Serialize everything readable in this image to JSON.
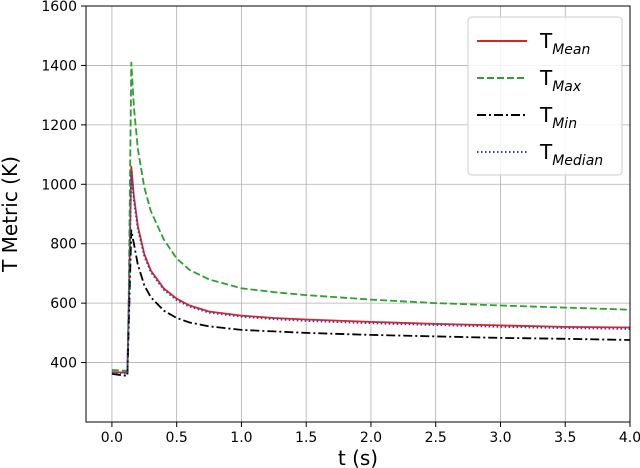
{
  "chart_data": {
    "type": "line",
    "xlabel": "t (s)",
    "ylabel": "T Metric (K)",
    "xlim": [
      -0.2,
      4.0
    ],
    "ylim": [
      200,
      1600
    ],
    "xticks": [
      0.0,
      0.5,
      1.0,
      1.5,
      2.0,
      2.5,
      3.0,
      3.5,
      4.0
    ],
    "xtick_labels": [
      "0.0",
      "0.5",
      "1.0",
      "1.5",
      "2.0",
      "2.5",
      "3.0",
      "3.5",
      "4.0"
    ],
    "yticks": [
      400,
      600,
      800,
      1000,
      1200,
      1400,
      1600
    ],
    "ytick_labels": [
      "400",
      "600",
      "800",
      "1000",
      "1200",
      "1400",
      "1600"
    ],
    "grid": true,
    "legend_position": "upper right",
    "series": [
      {
        "name": "Mean",
        "label_main": "T",
        "label_sub": "Mean",
        "color": "#d62728",
        "style": "solid",
        "x": [
          0.0,
          0.12,
          0.13,
          0.15,
          0.17,
          0.2,
          0.25,
          0.3,
          0.4,
          0.5,
          0.6,
          0.75,
          1.0,
          1.25,
          1.5,
          2.0,
          2.5,
          3.0,
          3.5,
          4.0
        ],
        "y": [
          368,
          366,
          580,
          1060,
          960,
          860,
          765,
          710,
          650,
          615,
          592,
          572,
          558,
          550,
          545,
          537,
          530,
          525,
          520,
          518
        ]
      },
      {
        "name": "Max",
        "label_main": "T",
        "label_sub": "Max",
        "color": "#2ca02c",
        "style": "dashed",
        "x": [
          0.0,
          0.12,
          0.13,
          0.15,
          0.17,
          0.2,
          0.25,
          0.3,
          0.4,
          0.5,
          0.6,
          0.75,
          1.0,
          1.25,
          1.5,
          2.0,
          2.5,
          3.0,
          3.5,
          4.0
        ],
        "y": [
          375,
          372,
          620,
          1410,
          1260,
          1120,
          990,
          910,
          815,
          750,
          712,
          680,
          650,
          637,
          627,
          612,
          600,
          592,
          585,
          578
        ]
      },
      {
        "name": "Min",
        "label_main": "T",
        "label_sub": "Min",
        "color": "#000000",
        "style": "dashdot",
        "x": [
          0.0,
          0.12,
          0.13,
          0.15,
          0.17,
          0.2,
          0.25,
          0.3,
          0.4,
          0.5,
          0.6,
          0.75,
          1.0,
          1.25,
          1.5,
          2.0,
          2.5,
          3.0,
          3.5,
          4.0
        ],
        "y": [
          362,
          355,
          520,
          845,
          800,
          730,
          660,
          620,
          575,
          550,
          535,
          522,
          510,
          505,
          500,
          493,
          488,
          483,
          480,
          476
        ]
      },
      {
        "name": "Median",
        "label_main": "T",
        "label_sub": "Median",
        "color": "#3b3bb0",
        "style": "dotted",
        "x": [
          0.0,
          0.12,
          0.13,
          0.15,
          0.17,
          0.2,
          0.25,
          0.3,
          0.4,
          0.5,
          0.6,
          0.75,
          1.0,
          1.25,
          1.5,
          2.0,
          2.5,
          3.0,
          3.5,
          4.0
        ],
        "y": [
          366,
          364,
          570,
          1040,
          945,
          850,
          758,
          704,
          645,
          610,
          588,
          568,
          554,
          546,
          540,
          532,
          526,
          520,
          516,
          513
        ]
      }
    ]
  }
}
